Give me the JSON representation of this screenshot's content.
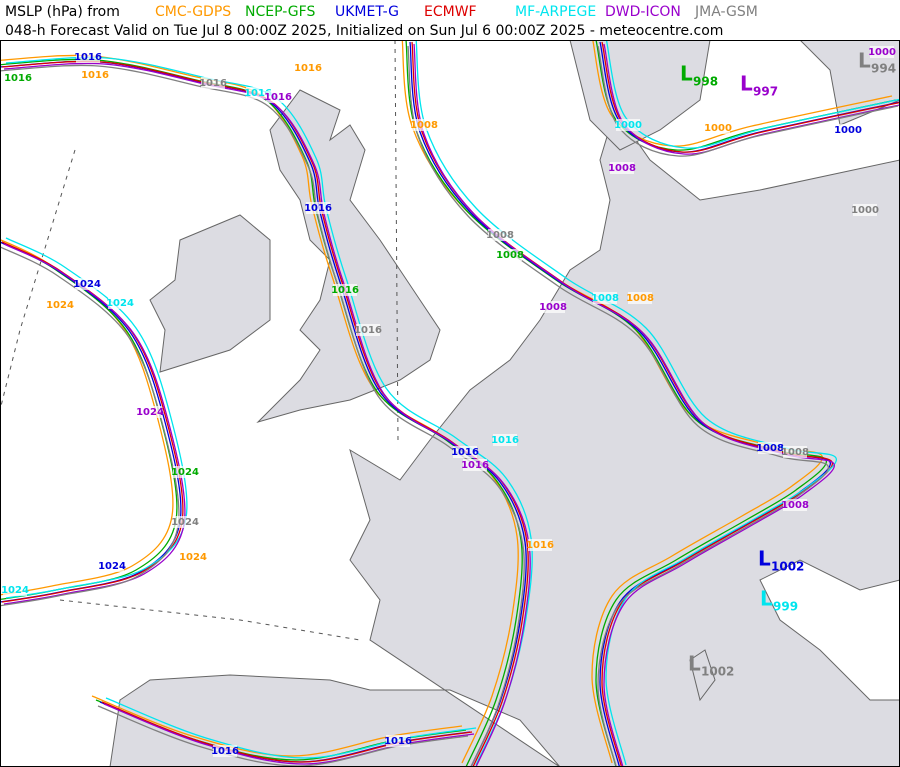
{
  "header": {
    "title": "MSLP (hPa) from",
    "subtitle": "048-h Forecast Valid on Tue Jul 8 00:00Z 2025, Initialized on Sun Jul 6 00:00Z 2025 - meteocentre.com"
  },
  "low_marker": "L",
  "models": [
    {
      "name": "CMC-GDPS",
      "color": "#ff9900",
      "contours": [
        "1016",
        "1016",
        "1008",
        "1000",
        "1024",
        "1024",
        "1008",
        "1016"
      ],
      "lows": []
    },
    {
      "name": "NCEP-GFS",
      "color": "#00aa00",
      "contours": [
        "1016",
        "1008",
        "1016",
        "1024"
      ],
      "lows": [
        "998"
      ]
    },
    {
      "name": "UKMET-G",
      "color": "#0000dd",
      "contours": [
        "1016",
        "1016",
        "1024",
        "1024",
        "1016",
        "1008",
        "1000",
        "1016",
        "1016"
      ],
      "lows": [
        "1002"
      ]
    },
    {
      "name": "ECMWF",
      "color": "#dd0000",
      "contours": [],
      "lows": []
    },
    {
      "name": "MF-ARPEGE",
      "color": "#00e5ee",
      "contours": [
        "1016",
        "1024",
        "1000",
        "1008",
        "1016",
        "1024"
      ],
      "lows": [
        "999"
      ]
    },
    {
      "name": "DWD-ICON",
      "color": "#9900cc",
      "contours": [
        "1016",
        "1008",
        "1024",
        "1008",
        "1016",
        "1000",
        "1008"
      ],
      "lows": [
        "997"
      ]
    },
    {
      "name": "JMA-GSM",
      "color": "#808080",
      "contours": [
        "1016",
        "1008",
        "1016",
        "1024",
        "1000",
        "1008"
      ],
      "lows": [
        "994",
        "1002"
      ]
    }
  ]
}
